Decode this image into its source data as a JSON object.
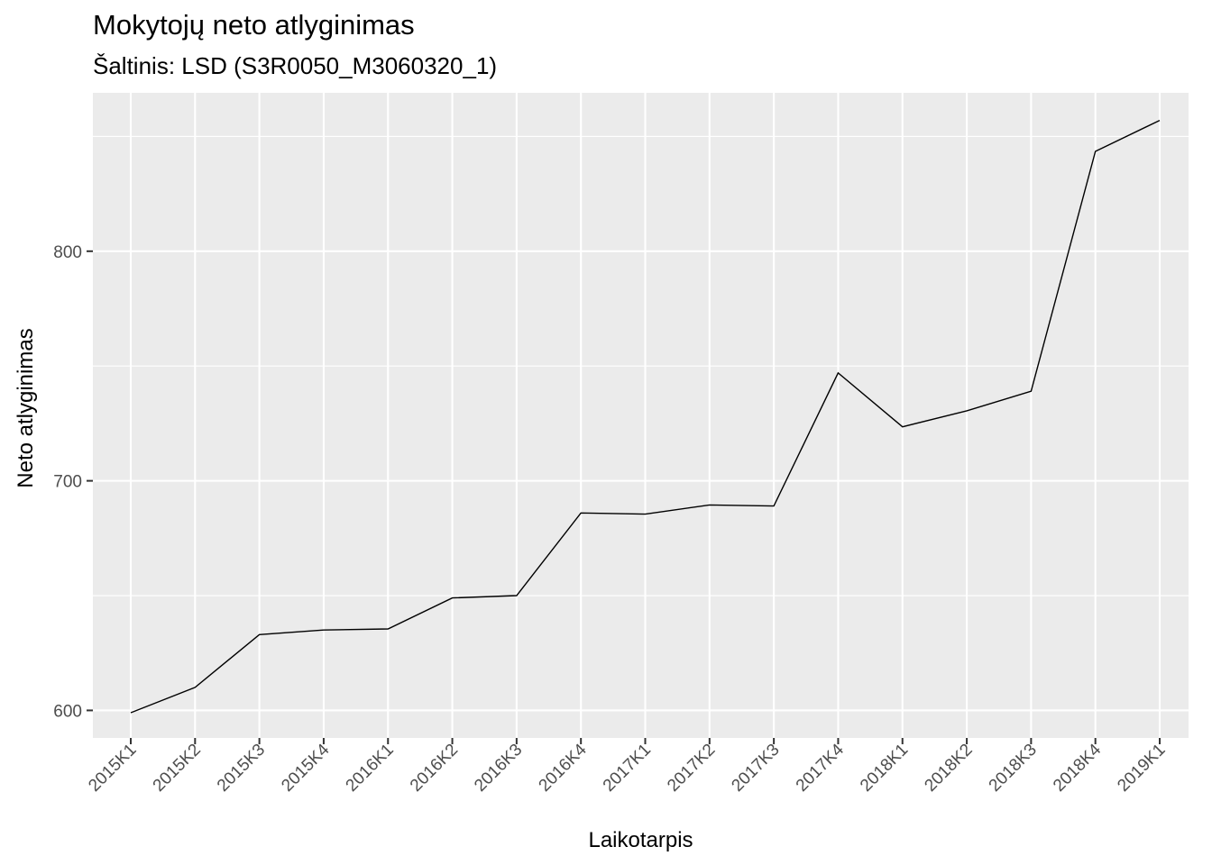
{
  "chart_data": {
    "type": "line",
    "title": "Mokytojų neto atlyginimas",
    "subtitle": "Šaltinis: LSD (S3R0050_M3060320_1)",
    "xlabel": "Laikotarpis",
    "ylabel": "Neto atlyginimas",
    "categories": [
      "2015K1",
      "2015K2",
      "2015K3",
      "2015K4",
      "2016K1",
      "2016K2",
      "2016K3",
      "2016K4",
      "2017K1",
      "2017K2",
      "2017K3",
      "2017K4",
      "2018K1",
      "2018K2",
      "2018K3",
      "2018K4",
      "2019K1"
    ],
    "values": [
      599,
      610,
      633,
      635,
      635.5,
      649,
      650,
      686,
      685.5,
      689.5,
      689,
      747,
      723.5,
      730.5,
      739,
      843.5,
      857
    ],
    "ylim": [
      588,
      869
    ],
    "yticks": [
      600,
      700,
      800
    ],
    "grid": true,
    "legend": "none",
    "colors": {
      "panel": "#ebebeb",
      "grid": "#ffffff",
      "line": "#000000"
    }
  }
}
